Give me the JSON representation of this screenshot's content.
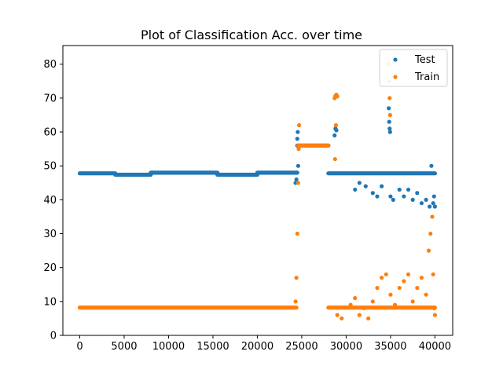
{
  "chart_data": {
    "type": "scatter",
    "title": "Plot of Classification Acc. over time",
    "xlabel": "",
    "ylabel": "",
    "xlim": [
      -1900,
      42000
    ],
    "ylim": [
      0,
      85.5
    ],
    "x_ticks": [
      0,
      5000,
      10000,
      15000,
      20000,
      25000,
      30000,
      35000,
      40000
    ],
    "y_ticks": [
      0,
      10,
      20,
      30,
      40,
      50,
      60,
      70,
      80
    ],
    "x_tick_labels": [
      "0",
      "5000",
      "10000",
      "15000",
      "20000",
      "25000",
      "30000",
      "35000",
      "40000"
    ],
    "y_tick_labels": [
      "0",
      "10",
      "20",
      "30",
      "40",
      "50",
      "60",
      "70",
      "80"
    ],
    "grid": false,
    "legend_position": "top-right",
    "series": [
      {
        "name": "Test",
        "color": "#1f77b4",
        "segments": [
          {
            "x": [
              0,
              4000
            ],
            "y": 47.8
          },
          {
            "x": [
              4000,
              8000
            ],
            "y": 47.4
          },
          {
            "x": [
              8000,
              15500
            ],
            "y": 48.0
          },
          {
            "x": [
              15500,
              20000
            ],
            "y": 47.4
          },
          {
            "x": [
              20000,
              24500
            ],
            "y": 48.0
          },
          {
            "x": [
              24500,
              28000
            ],
            "y": 56.0
          },
          {
            "x": [
              28000,
              40000
            ],
            "y": 47.8
          }
        ],
        "points": [
          [
            24300,
            45
          ],
          [
            24400,
            46
          ],
          [
            24500,
            58
          ],
          [
            24550,
            60
          ],
          [
            24600,
            50
          ],
          [
            28700,
            59
          ],
          [
            28800,
            61
          ],
          [
            28900,
            60.5
          ],
          [
            34800,
            67
          ],
          [
            34850,
            63
          ],
          [
            34900,
            61
          ],
          [
            34950,
            60
          ],
          [
            31000,
            43
          ],
          [
            31500,
            45
          ],
          [
            32200,
            44
          ],
          [
            33000,
            42
          ],
          [
            33500,
            41
          ],
          [
            34000,
            44
          ],
          [
            35000,
            41
          ],
          [
            35300,
            40
          ],
          [
            36000,
            43
          ],
          [
            36500,
            41
          ],
          [
            37000,
            43
          ],
          [
            37500,
            40
          ],
          [
            38000,
            42
          ],
          [
            38500,
            39
          ],
          [
            39000,
            40
          ],
          [
            39400,
            38
          ],
          [
            39600,
            50
          ],
          [
            39800,
            39
          ],
          [
            39900,
            41
          ],
          [
            40000,
            38
          ]
        ]
      },
      {
        "name": "Train",
        "color": "#ff7f0e",
        "segments": [
          {
            "x": [
              0,
              24400
            ],
            "y": 8.2
          },
          {
            "x": [
              24600,
              28000
            ],
            "y": 56.0
          },
          {
            "x": [
              28000,
              40000
            ],
            "y": 8.2
          }
        ],
        "points": [
          [
            24300,
            10
          ],
          [
            24400,
            17
          ],
          [
            24500,
            30
          ],
          [
            24600,
            45
          ],
          [
            24650,
            55
          ],
          [
            24700,
            62
          ],
          [
            28700,
            70
          ],
          [
            28800,
            70.7
          ],
          [
            28900,
            71
          ],
          [
            29000,
            70.5
          ],
          [
            28750,
            52
          ],
          [
            28850,
            62
          ],
          [
            34800,
            80
          ],
          [
            34850,
            75
          ],
          [
            34900,
            70
          ],
          [
            34950,
            65
          ],
          [
            29000,
            6
          ],
          [
            29500,
            5
          ],
          [
            30500,
            9
          ],
          [
            31000,
            11
          ],
          [
            31500,
            6
          ],
          [
            32000,
            8
          ],
          [
            32500,
            5
          ],
          [
            33000,
            10
          ],
          [
            33500,
            14
          ],
          [
            34000,
            17
          ],
          [
            34500,
            18
          ],
          [
            35000,
            12
          ],
          [
            35500,
            9
          ],
          [
            36000,
            14
          ],
          [
            36500,
            16
          ],
          [
            37000,
            18
          ],
          [
            37500,
            10
          ],
          [
            38000,
            14
          ],
          [
            38500,
            17
          ],
          [
            39000,
            12
          ],
          [
            39300,
            25
          ],
          [
            39500,
            30
          ],
          [
            39700,
            35
          ],
          [
            39800,
            18
          ],
          [
            39900,
            8
          ],
          [
            40000,
            6
          ]
        ]
      }
    ]
  }
}
